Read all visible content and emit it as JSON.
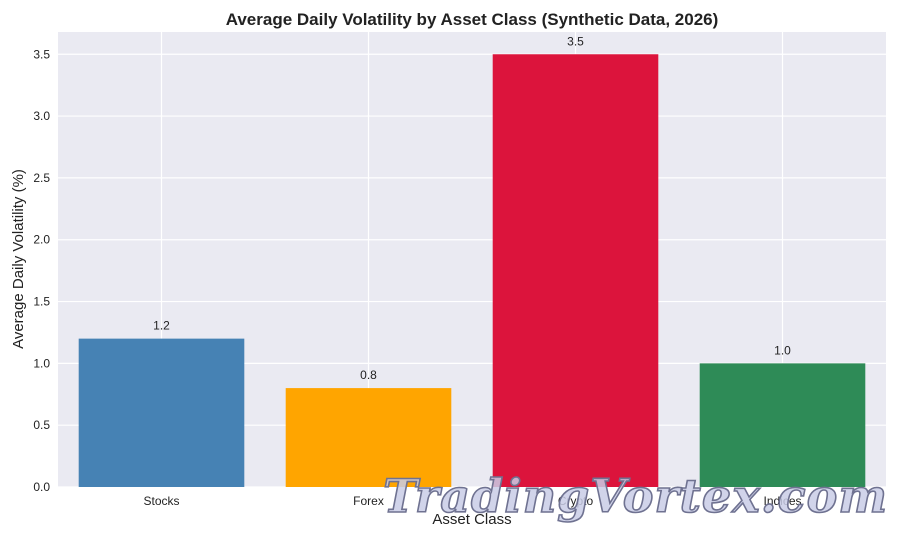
{
  "chart_data": {
    "type": "bar",
    "title": "Average Daily Volatility by Asset Class (Synthetic Data, 2026)",
    "xlabel": "Asset Class",
    "ylabel": "Average Daily Volatility (%)",
    "categories": [
      "Stocks",
      "Forex",
      "Crypto",
      "Indices"
    ],
    "values": [
      1.2,
      0.8,
      3.5,
      1.0
    ],
    "data_labels": [
      "1.2",
      "0.8",
      "3.5",
      "1.0"
    ],
    "colors": [
      "#4682b4",
      "#ffa500",
      "#dc143c",
      "#2e8b57"
    ],
    "ylim": [
      0,
      3.68
    ],
    "yticks": [
      0.0,
      0.5,
      1.0,
      1.5,
      2.0,
      2.5,
      3.0,
      3.5
    ],
    "ytick_labels": [
      "0.0",
      "0.5",
      "1.0",
      "1.5",
      "2.0",
      "2.5",
      "3.0",
      "3.5"
    ],
    "grid": true,
    "legend": "none",
    "plot_background": "#eaeaf2",
    "grid_color": "#ffffff"
  },
  "watermark": {
    "text": "TradingVortex.com"
  }
}
